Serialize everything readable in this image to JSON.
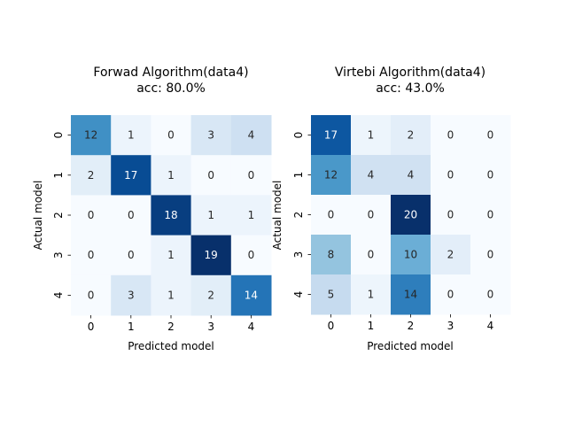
{
  "chart_data": [
    {
      "type": "heatmap",
      "title": "Forwad Algorithm(data4)",
      "subtitle": "acc: 80.0%",
      "xlabel": "Predicted model",
      "ylabel": "Actual model",
      "x_categories": [
        "0",
        "1",
        "2",
        "3",
        "4"
      ],
      "y_categories": [
        "0",
        "1",
        "2",
        "3",
        "4"
      ],
      "values": [
        [
          12,
          1,
          0,
          3,
          4
        ],
        [
          2,
          17,
          1,
          0,
          0
        ],
        [
          0,
          0,
          18,
          1,
          1
        ],
        [
          0,
          0,
          1,
          19,
          0
        ],
        [
          0,
          3,
          1,
          2,
          14
        ]
      ],
      "vmin": 0,
      "vmax": 19,
      "colormap": "Blues",
      "colorbar": false,
      "grid": false
    },
    {
      "type": "heatmap",
      "title": "Virtebi Algorithm(data4)",
      "subtitle": "acc: 43.0%",
      "xlabel": "Predicted model",
      "ylabel": "Actual model",
      "x_categories": [
        "0",
        "1",
        "2",
        "3",
        "4"
      ],
      "y_categories": [
        "0",
        "1",
        "2",
        "3",
        "4"
      ],
      "values": [
        [
          17,
          1,
          2,
          0,
          0
        ],
        [
          12,
          4,
          4,
          0,
          0
        ],
        [
          0,
          0,
          20,
          0,
          0
        ],
        [
          8,
          0,
          10,
          2,
          0
        ],
        [
          5,
          1,
          14,
          0,
          0
        ]
      ],
      "vmin": 0,
      "vmax": 20,
      "colormap": "Blues",
      "colorbar": false,
      "grid": false
    }
  ]
}
